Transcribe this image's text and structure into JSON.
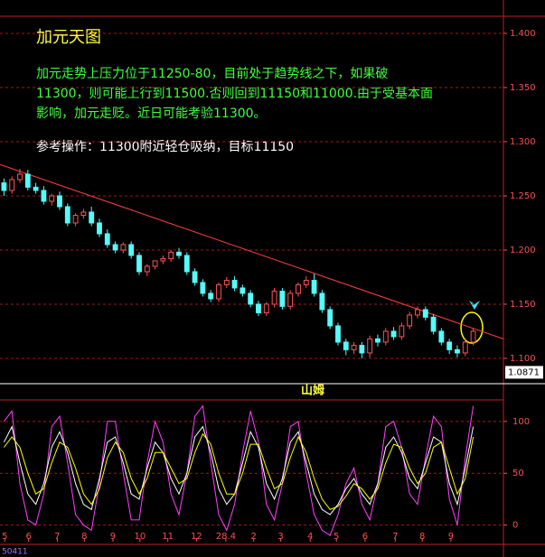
{
  "chart_data": {
    "type": "candlestick",
    "title": "加元天图",
    "commentary": [
      "加元走势上压力位于11250-80，目前处于趋势线之下，如果破",
      "11300，则可能上行到11500.否则回到11150和11000.由于受基本面",
      "影响，加元走贬。近日可能考验11300。"
    ],
    "operation": "参考操作：11300附近轻仓吸纳，目标11150",
    "open": [
      1.262,
      1.255,
      1.265,
      1.27,
      1.258,
      1.255,
      1.245,
      1.25,
      1.24,
      1.225,
      1.232,
      1.235,
      1.225,
      1.215,
      1.205,
      1.2,
      1.205,
      1.195,
      1.18,
      1.185,
      1.19,
      1.192,
      1.198,
      1.195,
      1.18,
      1.17,
      1.16,
      1.155,
      1.168,
      1.172,
      1.165,
      1.16,
      1.15,
      1.142,
      1.15,
      1.162,
      1.148,
      1.16,
      1.168,
      1.172,
      1.16,
      1.145,
      1.13,
      1.115,
      1.108,
      1.112,
      1.105,
      1.118,
      1.115,
      1.125,
      1.12,
      1.13,
      1.14,
      1.145,
      1.138,
      1.125,
      1.115,
      1.108,
      1.105,
      1.115
    ],
    "high": [
      1.266,
      1.268,
      1.275,
      1.274,
      1.262,
      1.259,
      1.252,
      1.254,
      1.243,
      1.234,
      1.238,
      1.24,
      1.229,
      1.219,
      1.208,
      1.207,
      1.208,
      1.198,
      1.187,
      1.19,
      1.195,
      1.2,
      1.202,
      1.198,
      1.183,
      1.173,
      1.163,
      1.17,
      1.175,
      1.176,
      1.168,
      1.163,
      1.153,
      1.152,
      1.165,
      1.165,
      1.163,
      1.17,
      1.176,
      1.178,
      1.163,
      1.148,
      1.133,
      1.118,
      1.115,
      1.115,
      1.121,
      1.122,
      1.128,
      1.129,
      1.133,
      1.143,
      1.148,
      1.148,
      1.141,
      1.128,
      1.118,
      1.112,
      1.118,
      1.128
    ],
    "low": [
      1.25,
      1.252,
      1.262,
      1.255,
      1.252,
      1.242,
      1.241,
      1.237,
      1.222,
      1.222,
      1.229,
      1.222,
      1.212,
      1.202,
      1.197,
      1.197,
      1.192,
      1.177,
      1.176,
      1.182,
      1.187,
      1.189,
      1.192,
      1.177,
      1.167,
      1.157,
      1.152,
      1.152,
      1.165,
      1.162,
      1.157,
      1.147,
      1.139,
      1.139,
      1.147,
      1.145,
      1.145,
      1.157,
      1.165,
      1.157,
      1.142,
      1.127,
      1.112,
      1.103,
      1.104,
      1.1,
      1.101,
      1.111,
      1.112,
      1.117,
      1.117,
      1.127,
      1.137,
      1.135,
      1.122,
      1.112,
      1.104,
      1.101,
      1.102,
      1.112
    ],
    "close": [
      1.255,
      1.265,
      1.27,
      1.258,
      1.255,
      1.245,
      1.25,
      1.24,
      1.225,
      1.232,
      1.235,
      1.225,
      1.215,
      1.205,
      1.2,
      1.205,
      1.195,
      1.18,
      1.185,
      1.19,
      1.192,
      1.198,
      1.195,
      1.18,
      1.17,
      1.16,
      1.155,
      1.168,
      1.172,
      1.165,
      1.16,
      1.15,
      1.142,
      1.15,
      1.162,
      1.148,
      1.16,
      1.168,
      1.172,
      1.16,
      1.145,
      1.13,
      1.115,
      1.108,
      1.112,
      1.105,
      1.118,
      1.115,
      1.125,
      1.12,
      1.13,
      1.14,
      1.145,
      1.138,
      1.125,
      1.115,
      1.108,
      1.105,
      1.115,
      1.125
    ],
    "up_color": "#ff5454",
    "down_color": "#54fcfc",
    "xlim": [
      0,
      63.3
    ],
    "xticks": [
      {
        "value": 0.6,
        "label": "5"
      },
      {
        "value": 3.6,
        "label": "6"
      },
      {
        "value": 7.2,
        "label": "7"
      },
      {
        "value": 10.6,
        "label": "8"
      },
      {
        "value": 14.2,
        "label": "9"
      },
      {
        "value": 17.6,
        "label": "10"
      },
      {
        "value": 21.1,
        "label": "11"
      },
      {
        "value": 24.7,
        "label": "12"
      },
      28.4,
      {
        "value": 31.9,
        "label": "2"
      },
      {
        "value": 35.3,
        "label": "3"
      },
      {
        "value": 39,
        "label": "4"
      },
      {
        "value": 42.3,
        "label": "5"
      },
      {
        "value": 45.9,
        "label": "6"
      },
      {
        "value": 49.7,
        "label": "7"
      },
      {
        "value": 53.1,
        "label": "8"
      },
      {
        "value": 56.7,
        "label": "9"
      }
    ],
    "ylim": [
      1.0808,
      1.4158
    ],
    "yticks": [
      {
        "value": 1.1,
        "label": "1.100"
      },
      {
        "value": 1.15,
        "label": "1.150"
      },
      {
        "value": 1.2,
        "label": "1.200"
      },
      {
        "value": 1.25,
        "label": "1.250"
      },
      {
        "value": 1.3,
        "label": "1.300"
      },
      {
        "value": 1.35,
        "label": "1.350"
      },
      {
        "value": 1.4,
        "label": "1.400"
      }
    ],
    "last_price": {
      "value": 1.0871,
      "label": "1.0871"
    },
    "trendline": {
      "x": [
        0,
        63.3
      ],
      "y": [
        1.279,
        1.118
      ],
      "color": "#ff4040"
    },
    "indicator": {
      "title": "山姆",
      "ylim": [
        -16,
        119
      ],
      "yticks": [
        0,
        50,
        100
      ],
      "series": [
        {
          "color": "#ff40ff",
          "values": [
            100,
            110,
            40,
            5,
            0,
            30,
            95,
            105,
            60,
            10,
            0,
            -5,
            40,
            100,
            100,
            50,
            5,
            5,
            60,
            100,
            80,
            30,
            10,
            50,
            105,
            115,
            60,
            10,
            -5,
            20,
            70,
            110,
            80,
            20,
            5,
            40,
            95,
            100,
            50,
            10,
            -5,
            -10,
            10,
            40,
            55,
            20,
            5,
            40,
            95,
            100,
            75,
            30,
            20,
            65,
            105,
            95,
            25,
            0,
            65,
            115
          ]
        },
        {
          "color": "#ffffff",
          "values": [
            80,
            95,
            60,
            30,
            20,
            40,
            75,
            90,
            70,
            40,
            20,
            15,
            45,
            80,
            85,
            60,
            30,
            25,
            55,
            80,
            70,
            45,
            30,
            50,
            85,
            95,
            70,
            35,
            20,
            30,
            60,
            90,
            75,
            40,
            25,
            45,
            80,
            90,
            60,
            30,
            15,
            10,
            20,
            35,
            45,
            30,
            20,
            40,
            75,
            85,
            70,
            45,
            35,
            60,
            85,
            80,
            40,
            20,
            55,
            95
          ]
        },
        {
          "color": "#ffff00",
          "values": [
            75,
            85,
            75,
            50,
            30,
            35,
            60,
            80,
            75,
            55,
            30,
            20,
            35,
            65,
            80,
            70,
            45,
            30,
            45,
            70,
            70,
            55,
            40,
            45,
            70,
            88,
            78,
            50,
            30,
            30,
            50,
            78,
            78,
            55,
            35,
            40,
            65,
            85,
            70,
            45,
            25,
            15,
            18,
            28,
            40,
            35,
            25,
            35,
            60,
            78,
            75,
            55,
            40,
            50,
            75,
            80,
            55,
            30,
            45,
            85
          ]
        }
      ]
    },
    "corner_label": "50411"
  }
}
